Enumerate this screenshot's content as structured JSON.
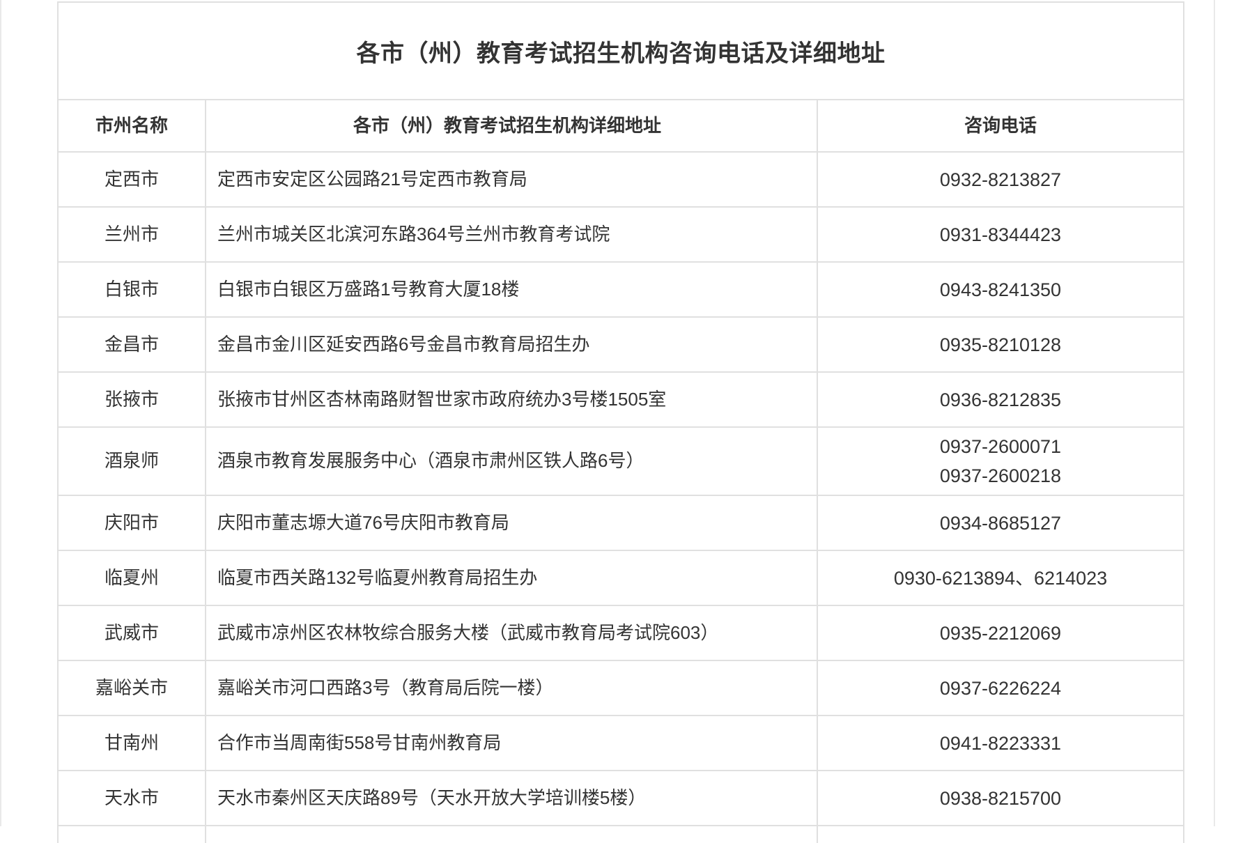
{
  "page": {
    "title": "各市（州）教育考试招生机构咨询电话及详细地址"
  },
  "table": {
    "columns": [
      "市州名称",
      "各市（州）教育考试招生机构详细地址",
      "咨询电话"
    ],
    "rows": [
      {
        "city": "定西市",
        "address": "定西市安定区公园路21号定西市教育局",
        "phones": [
          "0932-8213827"
        ]
      },
      {
        "city": "兰州市",
        "address": "兰州市城关区北滨河东路364号兰州市教育考试院",
        "phones": [
          "0931-8344423"
        ]
      },
      {
        "city": "白银市",
        "address": "白银市白银区万盛路1号教育大厦18楼",
        "phones": [
          "0943-8241350"
        ]
      },
      {
        "city": "金昌市",
        "address": "金昌市金川区延安西路6号金昌市教育局招生办",
        "phones": [
          "0935-8210128"
        ]
      },
      {
        "city": "张掖市",
        "address": "张掖市甘州区杏林南路财智世家市政府统办3号楼1505室",
        "phones": [
          "0936-8212835"
        ]
      },
      {
        "city": "酒泉师",
        "address": "酒泉市教育发展服务中心（酒泉市肃州区铁人路6号）",
        "phones": [
          "0937-2600071",
          "0937-2600218"
        ]
      },
      {
        "city": "庆阳市",
        "address": "庆阳市董志塬大道76号庆阳市教育局",
        "phones": [
          "0934-8685127"
        ]
      },
      {
        "city": "临夏州",
        "address": "临夏市西关路132号临夏州教育局招生办",
        "phones": [
          "0930-6213894、6214023"
        ]
      },
      {
        "city": "武威市",
        "address": "武威市凉州区农林牧综合服务大楼（武威市教育局考试院603）",
        "phones": [
          "0935-2212069"
        ]
      },
      {
        "city": "嘉峪关市",
        "address": "嘉峪关市河口西路3号（教育局后院一楼）",
        "phones": [
          "0937-6226224"
        ]
      },
      {
        "city": "甘南州",
        "address": "合作市当周南街558号甘南州教育局",
        "phones": [
          "0941-8223331"
        ]
      },
      {
        "city": "天水市",
        "address": "天水市秦州区天庆路89号（天水开放大学培训楼5楼）",
        "phones": [
          "0938-8215700"
        ]
      }
    ]
  },
  "colors": {
    "text": "#333333",
    "border": "#e0e0e0",
    "page_background": "#ffffff"
  }
}
